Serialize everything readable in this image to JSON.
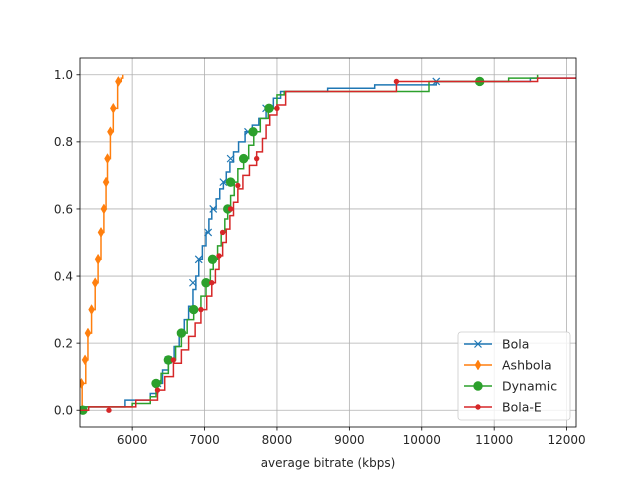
{
  "chart_data": {
    "type": "line",
    "subtype": "empirical-cdf-step",
    "title": "",
    "xlabel": "average bitrate (kbps)",
    "ylabel": "",
    "xlim": [
      5280,
      12130
    ],
    "ylim": [
      -0.05,
      1.05
    ],
    "xticks": [
      6000,
      7000,
      8000,
      9000,
      10000,
      11000,
      12000
    ],
    "yticks": [
      0.0,
      0.2,
      0.4,
      0.6,
      0.8,
      1.0
    ],
    "grid": true,
    "legend_position": "lower-right",
    "series": [
      {
        "name": "Bola",
        "color": "#1f77b4",
        "marker": "x",
        "points": [
          [
            5280,
            0.0
          ],
          [
            5300,
            0.01
          ],
          [
            5900,
            0.03
          ],
          [
            6250,
            0.05
          ],
          [
            6350,
            0.08
          ],
          [
            6420,
            0.12
          ],
          [
            6500,
            0.15
          ],
          [
            6580,
            0.19
          ],
          [
            6650,
            0.23
          ],
          [
            6720,
            0.27
          ],
          [
            6780,
            0.31
          ],
          [
            6840,
            0.36
          ],
          [
            6880,
            0.4
          ],
          [
            6920,
            0.45
          ],
          [
            6970,
            0.49
          ],
          [
            7020,
            0.53
          ],
          [
            7060,
            0.57
          ],
          [
            7100,
            0.6
          ],
          [
            7160,
            0.63
          ],
          [
            7210,
            0.66
          ],
          [
            7260,
            0.68
          ],
          [
            7300,
            0.71
          ],
          [
            7350,
            0.74
          ],
          [
            7400,
            0.77
          ],
          [
            7470,
            0.8
          ],
          [
            7560,
            0.83
          ],
          [
            7660,
            0.85
          ],
          [
            7750,
            0.87
          ],
          [
            7850,
            0.9
          ],
          [
            7950,
            0.93
          ],
          [
            8050,
            0.95
          ],
          [
            8700,
            0.96
          ],
          [
            9350,
            0.97
          ],
          [
            10200,
            0.98
          ],
          [
            11500,
            0.99
          ],
          [
            12130,
            0.99
          ]
        ],
        "marker_points": [
          [
            5300,
            0.0
          ],
          [
            6350,
            0.08
          ],
          [
            6500,
            0.15
          ],
          [
            6840,
            0.38
          ],
          [
            6920,
            0.45
          ],
          [
            7050,
            0.53
          ],
          [
            7120,
            0.6
          ],
          [
            7260,
            0.68
          ],
          [
            7360,
            0.75
          ],
          [
            7600,
            0.83
          ],
          [
            7850,
            0.9
          ],
          [
            10200,
            0.98
          ]
        ]
      },
      {
        "name": "Ashbola",
        "color": "#ff7f0e",
        "marker": "thin-diamond",
        "points": [
          [
            5280,
            0.0
          ],
          [
            5310,
            0.08
          ],
          [
            5360,
            0.15
          ],
          [
            5390,
            0.23
          ],
          [
            5440,
            0.3
          ],
          [
            5490,
            0.38
          ],
          [
            5530,
            0.45
          ],
          [
            5570,
            0.53
          ],
          [
            5610,
            0.6
          ],
          [
            5640,
            0.68
          ],
          [
            5660,
            0.75
          ],
          [
            5700,
            0.83
          ],
          [
            5740,
            0.9
          ],
          [
            5800,
            0.98
          ],
          [
            5850,
            0.99
          ],
          [
            5870,
            1.0
          ]
        ],
        "marker_points": [
          [
            5300,
            0.08
          ],
          [
            5350,
            0.15
          ],
          [
            5390,
            0.23
          ],
          [
            5440,
            0.3
          ],
          [
            5490,
            0.38
          ],
          [
            5530,
            0.45
          ],
          [
            5570,
            0.53
          ],
          [
            5610,
            0.6
          ],
          [
            5640,
            0.68
          ],
          [
            5660,
            0.75
          ],
          [
            5700,
            0.83
          ],
          [
            5740,
            0.9
          ],
          [
            5810,
            0.98
          ]
        ]
      },
      {
        "name": "Dynamic",
        "color": "#2ca02c",
        "marker": "o",
        "points": [
          [
            5280,
            0.0
          ],
          [
            5300,
            0.01
          ],
          [
            6000,
            0.02
          ],
          [
            6250,
            0.04
          ],
          [
            6330,
            0.08
          ],
          [
            6400,
            0.11
          ],
          [
            6500,
            0.15
          ],
          [
            6600,
            0.19
          ],
          [
            6680,
            0.23
          ],
          [
            6760,
            0.27
          ],
          [
            6850,
            0.3
          ],
          [
            6950,
            0.34
          ],
          [
            7020,
            0.38
          ],
          [
            7080,
            0.42
          ],
          [
            7120,
            0.45
          ],
          [
            7180,
            0.49
          ],
          [
            7230,
            0.53
          ],
          [
            7280,
            0.57
          ],
          [
            7320,
            0.6
          ],
          [
            7360,
            0.64
          ],
          [
            7410,
            0.68
          ],
          [
            7460,
            0.72
          ],
          [
            7540,
            0.75
          ],
          [
            7610,
            0.79
          ],
          [
            7680,
            0.83
          ],
          [
            7770,
            0.87
          ],
          [
            7880,
            0.9
          ],
          [
            8000,
            0.94
          ],
          [
            8100,
            0.95
          ],
          [
            10100,
            0.98
          ],
          [
            11200,
            0.99
          ],
          [
            11600,
            1.0
          ]
        ],
        "marker_points": [
          [
            5320,
            0.0
          ],
          [
            6330,
            0.08
          ],
          [
            6500,
            0.15
          ],
          [
            6680,
            0.23
          ],
          [
            6850,
            0.3
          ],
          [
            7020,
            0.38
          ],
          [
            7110,
            0.45
          ],
          [
            7320,
            0.6
          ],
          [
            7360,
            0.68
          ],
          [
            7540,
            0.75
          ],
          [
            7670,
            0.83
          ],
          [
            7890,
            0.9
          ],
          [
            10800,
            0.98
          ]
        ]
      },
      {
        "name": "Bola-E",
        "color": "#d62728",
        "marker": ".",
        "points": [
          [
            5280,
            0.0
          ],
          [
            5400,
            0.01
          ],
          [
            6050,
            0.03
          ],
          [
            6350,
            0.06
          ],
          [
            6450,
            0.1
          ],
          [
            6570,
            0.14
          ],
          [
            6680,
            0.18
          ],
          [
            6780,
            0.22
          ],
          [
            6870,
            0.26
          ],
          [
            6950,
            0.3
          ],
          [
            7030,
            0.34
          ],
          [
            7100,
            0.38
          ],
          [
            7150,
            0.42
          ],
          [
            7200,
            0.46
          ],
          [
            7250,
            0.5
          ],
          [
            7300,
            0.54
          ],
          [
            7350,
            0.58
          ],
          [
            7400,
            0.62
          ],
          [
            7460,
            0.66
          ],
          [
            7530,
            0.7
          ],
          [
            7620,
            0.73
          ],
          [
            7720,
            0.77
          ],
          [
            7800,
            0.81
          ],
          [
            7850,
            0.85
          ],
          [
            7900,
            0.88
          ],
          [
            8000,
            0.91
          ],
          [
            8120,
            0.95
          ],
          [
            9650,
            0.98
          ],
          [
            11600,
            0.99
          ],
          [
            12130,
            0.99
          ]
        ],
        "marker_points": [
          [
            5680,
            0.0
          ],
          [
            6350,
            0.06
          ],
          [
            6570,
            0.15
          ],
          [
            6950,
            0.3
          ],
          [
            7100,
            0.38
          ],
          [
            7200,
            0.46
          ],
          [
            7250,
            0.53
          ],
          [
            7360,
            0.6
          ],
          [
            7460,
            0.67
          ],
          [
            7720,
            0.75
          ],
          [
            8000,
            0.9
          ],
          [
            9650,
            0.98
          ]
        ]
      }
    ]
  }
}
